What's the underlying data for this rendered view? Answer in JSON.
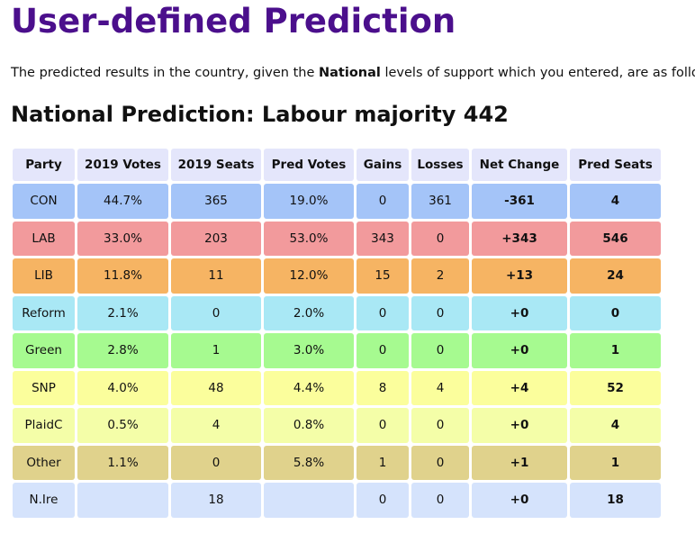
{
  "page": {
    "title": "User-defined Prediction",
    "intro_before": "The predicted results in the country, given the ",
    "intro_bold": "National",
    "intro_after": " levels of support which you entered, are as follo",
    "subtitle": "National Prediction: Labour majority 442"
  },
  "table": {
    "headers": [
      "Party",
      "2019 Votes",
      "2019 Seats",
      "Pred Votes",
      "Gains",
      "Losses",
      "Net Change",
      "Pred Seats"
    ],
    "rows": [
      {
        "cells": [
          "CON",
          "44.7%",
          "365",
          "19.0%",
          "0",
          "361",
          "-361",
          "4"
        ],
        "color": "#a4c4f8"
      },
      {
        "cells": [
          "LAB",
          "33.0%",
          "203",
          "53.0%",
          "343",
          "0",
          "+343",
          "546"
        ],
        "color": "#f29a9c"
      },
      {
        "cells": [
          "LIB",
          "11.8%",
          "11",
          "12.0%",
          "15",
          "2",
          "+13",
          "24"
        ],
        "color": "#f6b463"
      },
      {
        "cells": [
          "Reform",
          "2.1%",
          "0",
          "2.0%",
          "0",
          "0",
          "+0",
          "0"
        ],
        "color": "#a9e8f5"
      },
      {
        "cells": [
          "Green",
          "2.8%",
          "1",
          "3.0%",
          "0",
          "0",
          "+0",
          "1"
        ],
        "color": "#a6fa90"
      },
      {
        "cells": [
          "SNP",
          "4.0%",
          "48",
          "4.4%",
          "8",
          "4",
          "+4",
          "52"
        ],
        "color": "#fbfe9c"
      },
      {
        "cells": [
          "PlaidC",
          "0.5%",
          "4",
          "0.8%",
          "0",
          "0",
          "+0",
          "4"
        ],
        "color": "#f4fea8"
      },
      {
        "cells": [
          "Other",
          "1.1%",
          "0",
          "5.8%",
          "1",
          "0",
          "+1",
          "1"
        ],
        "color": "#e0d28c"
      },
      {
        "cells": [
          "N.Ire",
          "",
          "18",
          "",
          "0",
          "0",
          "+0",
          "18"
        ],
        "color": "#d5e3fc"
      }
    ]
  }
}
